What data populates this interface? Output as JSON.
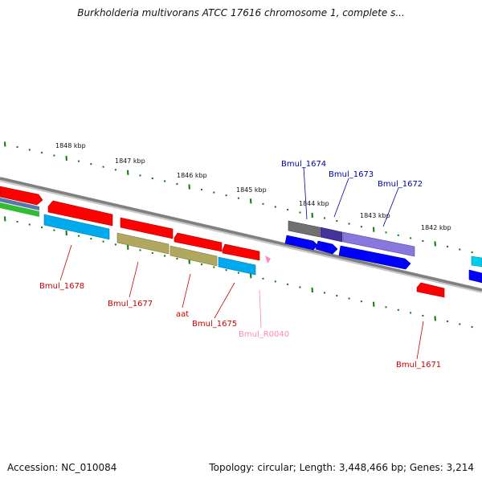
{
  "title": "Burkholderia multivorans ATCC 17616 chromosome 1, complete s...",
  "footer": {
    "accession": "Accession: NC_010084",
    "summary": "Topology: circular; Length: 3,448,466 bp; Genes: 3,214"
  },
  "colors": {
    "backbone": "#808080",
    "ticks": "#0a7a0a",
    "red_gene": "#ff0000",
    "blue_gene": "#0000ff",
    "cyan_gene": "#00aaee",
    "olive_gene": "#b0a860",
    "purple_gene": "#8877dd",
    "gray_gene": "#707070",
    "dark_purple_gene": "#443399",
    "green_gene": "#33bb33",
    "steel_gene": "#5577aa",
    "pink_marker": "#ff88bb",
    "label_red": "#cc0000",
    "label_blue": "#0000aa",
    "label_pink": "#ff88bb"
  },
  "kbp_labels": [
    "1848 kbp",
    "1847 kbp",
    "1846 kbp",
    "1845 kbp",
    "1844 kbp",
    "1843 kbp",
    "1842 kbp"
  ],
  "gene_labels": {
    "bmul_1678": "Bmul_1678",
    "bmul_1677": "Bmul_1677",
    "aat": "aat",
    "bmul_1675": "Bmul_1675",
    "bmul_r0040": "Bmul_R0040",
    "bmul_1674": "Bmul_1674",
    "bmul_1673": "Bmul_1673",
    "bmul_1672": "Bmul_1672",
    "bmul_1671": "Bmul_1671"
  }
}
